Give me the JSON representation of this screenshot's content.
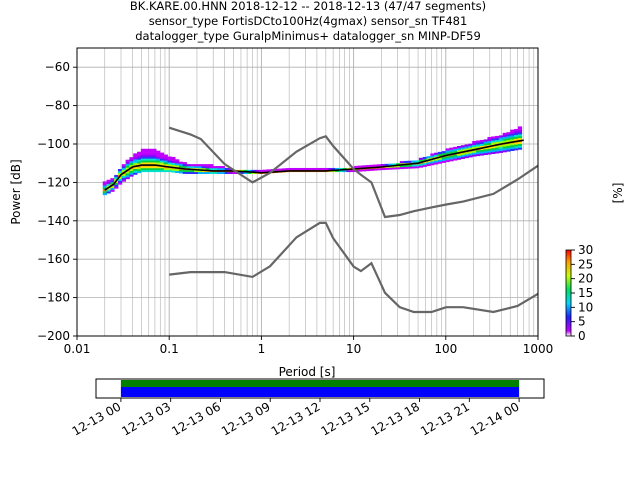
{
  "title": {
    "line1": "BK.KARE.00.HNN   2018-12-12 -- 2018-12-13  (47/47 segments)",
    "line2": "sensor_type FortisDCto100Hz(4gmax) sensor_sn TF481",
    "line3": "datalogger_type GuralpMinimus+ datalogger_sn MINP-DF59"
  },
  "colorbar": {
    "label": "[%]",
    "ticks": [
      "0",
      "5",
      "10",
      "15",
      "20",
      "25",
      "30"
    ],
    "min": 0,
    "max": 30
  },
  "chart_data": [
    {
      "type": "heatmap",
      "xlabel": "Period [s]",
      "ylabel": "Power [dB]",
      "xscale": "log",
      "xlim": [
        0.01,
        1000
      ],
      "ylim": [
        -200,
        -50
      ],
      "grid": true,
      "x_ticks": [
        "0.01",
        "0.1",
        "1",
        "10",
        "100",
        "1000"
      ],
      "y_ticks": [
        "−200",
        "−180",
        "−160",
        "−140",
        "−120",
        "−100",
        "−80",
        "−60"
      ],
      "x_tick_values": [
        0.01,
        0.1,
        1,
        10,
        100,
        1000
      ],
      "y_tick_values": [
        -200,
        -180,
        -160,
        -140,
        -120,
        -100,
        -80,
        -60
      ],
      "psd_band": {
        "periods": [
          0.02,
          0.025,
          0.03,
          0.04,
          0.05,
          0.07,
          0.1,
          0.15,
          0.3,
          0.5,
          1,
          2,
          5,
          10,
          20,
          50,
          100,
          200,
          400,
          700
        ],
        "upper": [
          -120,
          -118,
          -112,
          -106,
          -103,
          -103,
          -106,
          -110,
          -111,
          -113,
          -114,
          -113,
          -113,
          -112,
          -111,
          -108,
          -103,
          -99,
          -95,
          -90
        ],
        "lower": [
          -126,
          -124,
          -120,
          -116,
          -114,
          -114,
          -114,
          -115,
          -115,
          -115,
          -115,
          -114,
          -114,
          -114,
          -113,
          -112,
          -109,
          -106,
          -104,
          -102
        ],
        "mode": [
          -124,
          -121,
          -116,
          -112,
          -111,
          -111,
          -112,
          -113,
          -114,
          -114,
          -115,
          -114,
          -114,
          -113,
          -112,
          -110,
          -106,
          -103,
          -100,
          -98
        ]
      },
      "noise_models": [
        {
          "name": "",
          "x": [
            0.1,
            0.17,
            0.22,
            0.4,
            0.8,
            1.24,
            2.4,
            4.3,
            5,
            6,
            10,
            12,
            15.6,
            21.9,
            31.6,
            45,
            70,
            101,
            154,
            328,
            600,
            1000
          ],
          "y": [
            -91.5,
            -95,
            -97.4,
            -110.5,
            -120,
            -115,
            -104,
            -97,
            -96,
            -101,
            -113,
            -116,
            -120,
            -138,
            -137,
            -135,
            -133,
            -131.5,
            -130,
            -126,
            -118.5,
            -111.3
          ]
        },
        {
          "name": "",
          "x": [
            0.1,
            0.17,
            0.4,
            0.8,
            1.24,
            2.4,
            4.3,
            5,
            6,
            10,
            12,
            15.6,
            21.9,
            31.6,
            45,
            70,
            101,
            154,
            328,
            600,
            1000
          ],
          "y": [
            -168,
            -166.7,
            -166.7,
            -169.2,
            -163.7,
            -148.6,
            -141.1,
            -141.1,
            -149,
            -163.8,
            -166.2,
            -162.1,
            -177.5,
            -185,
            -187.5,
            -187.5,
            -185,
            -185,
            -187.5,
            -184.4,
            -178
          ]
        }
      ]
    },
    {
      "type": "bar",
      "title": "",
      "xlabel": "",
      "ylabel": "",
      "xlim": [
        "12-12 22:30",
        "12-14 01:30"
      ],
      "x_ticks": [
        "12-13 00",
        "12-13 03",
        "12-13 06",
        "12-13 09",
        "12-13 12",
        "12-13 15",
        "12-13 18",
        "12-13 21",
        "12-14 00"
      ],
      "x_tick_hours": [
        0,
        3,
        6,
        9,
        12,
        15,
        18,
        21,
        24
      ],
      "coverage": [
        {
          "name": "",
          "start_hour": 0,
          "end_hour": 24,
          "color": "#008000"
        },
        {
          "name": "",
          "start_hour": 0,
          "end_hour": 24,
          "color": "#0000ff"
        }
      ]
    }
  ]
}
